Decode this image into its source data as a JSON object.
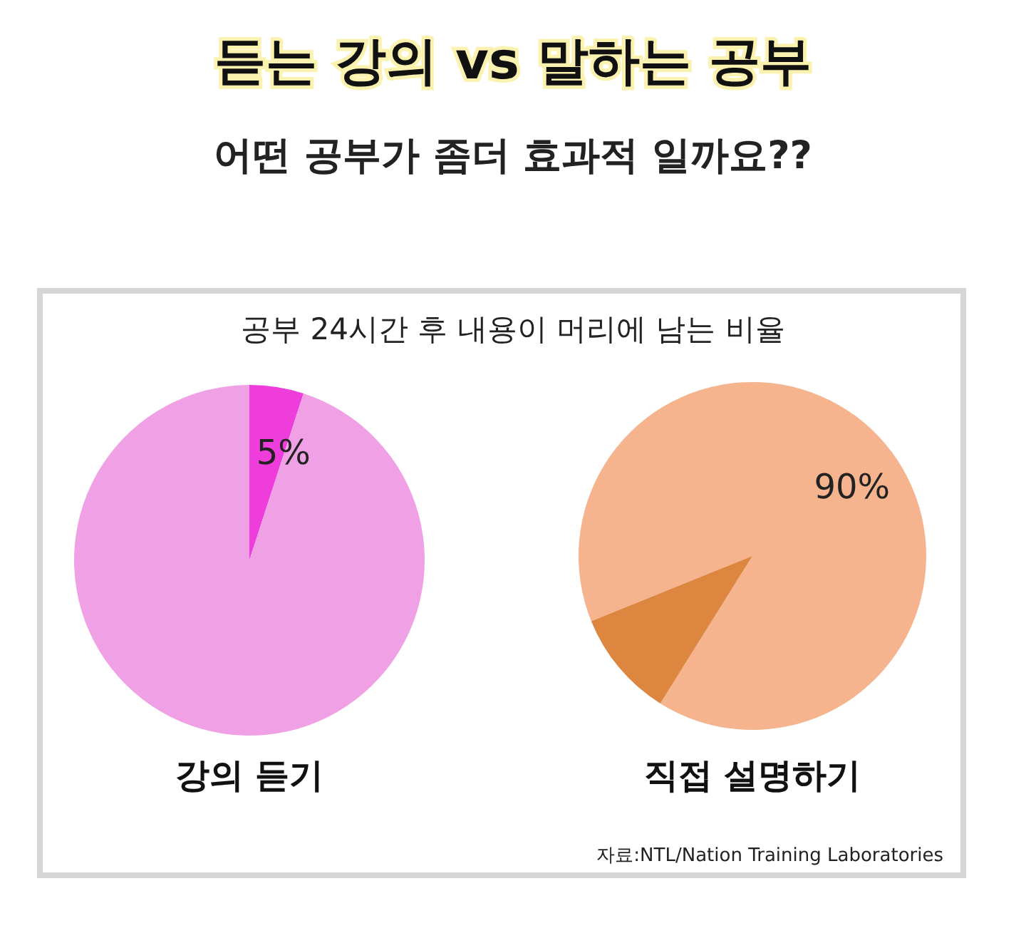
{
  "chart_data": [
    {
      "type": "pie",
      "title": "듣는 강의 vs 말하는 공부",
      "subtitle": "어떤 공부가 좀더 효과적 일까요??",
      "annotations": [
        "공부 24시간 후 내용이 머리에 남는 비율"
      ],
      "xlabel": "강의 듣기",
      "categories": [
        null,
        null
      ],
      "values": [
        5,
        95
      ],
      "colors": [
        "#ee3ddb",
        "#f0a0e4"
      ],
      "value_labels": [
        "5%",
        null
      ]
    },
    {
      "type": "pie",
      "xlabel": "직접 설명하기",
      "annotations": [
        "자료:NTL/Nation Training Laboratories"
      ],
      "categories": [
        null,
        null
      ],
      "values": [
        90,
        10
      ],
      "colors": [
        "#f5b48e",
        "#dc8640"
      ],
      "value_labels": [
        "90%",
        null
      ]
    }
  ]
}
